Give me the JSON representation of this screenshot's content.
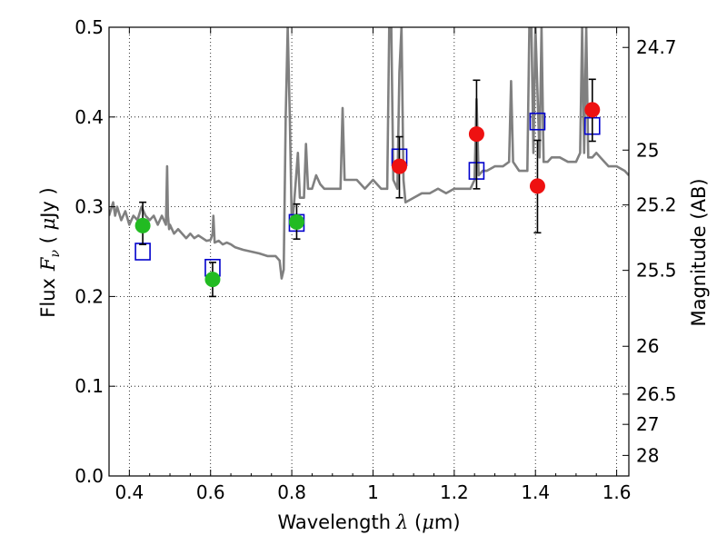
{
  "chart_data": {
    "type": "scatter",
    "xlabel": {
      "prefix": "Wavelength",
      "symbol": "λ",
      "unit_open": " (",
      "unit_mu": "μ",
      "unit_rest": "m)"
    },
    "ylabel": {
      "prefix": "Flux",
      "symbol": "F",
      "subscript": "ν",
      "unit_open": " ( ",
      "unit_mu": "μ",
      "unit_rest": "Jy )"
    },
    "y2label": "Magnitude (AB)",
    "xlim": [
      0.35,
      1.63
    ],
    "ylim": [
      0.0,
      0.5
    ],
    "grid": true,
    "xticks": [
      0.4,
      0.6,
      0.8,
      1.0,
      1.2,
      1.4,
      1.6
    ],
    "xtick_labels": [
      "0.4",
      "0.6",
      "0.8",
      "1",
      "1.2",
      "1.4",
      "1.6"
    ],
    "yticks": [
      0.0,
      0.1,
      0.2,
      0.3,
      0.4,
      0.5
    ],
    "ytick_labels": [
      "0.0",
      "0.1",
      "0.2",
      "0.3",
      "0.4",
      "0.5"
    ],
    "right_ticks": [
      {
        "label": "24.7",
        "flux": 0.4775
      },
      {
        "label": "25",
        "flux": 0.3631
      },
      {
        "label": "25.2",
        "flux": 0.302
      },
      {
        "label": "25.5",
        "flux": 0.2291
      },
      {
        "label": "26",
        "flux": 0.1445
      },
      {
        "label": "26.5",
        "flux": 0.0912
      },
      {
        "label": "27",
        "flux": 0.0575
      },
      {
        "label": "28",
        "flux": 0.0229
      }
    ],
    "series": [
      {
        "kind": "line",
        "color": "#808080",
        "x": [
          0.35,
          0.36,
          0.365,
          0.37,
          0.38,
          0.39,
          0.4,
          0.41,
          0.42,
          0.43,
          0.44,
          0.45,
          0.46,
          0.47,
          0.48,
          0.49,
          0.493,
          0.495,
          0.498,
          0.5,
          0.51,
          0.52,
          0.53,
          0.54,
          0.55,
          0.56,
          0.57,
          0.58,
          0.59,
          0.6,
          0.605,
          0.607,
          0.61,
          0.62,
          0.63,
          0.64,
          0.65,
          0.66,
          0.68,
          0.7,
          0.72,
          0.74,
          0.76,
          0.77,
          0.775,
          0.78,
          0.785,
          0.79,
          0.795,
          0.8,
          0.805,
          0.81,
          0.815,
          0.82,
          0.83,
          0.835,
          0.84,
          0.85,
          0.86,
          0.87,
          0.88,
          0.9,
          0.92,
          0.925,
          0.93,
          0.94,
          0.96,
          0.98,
          1.0,
          1.02,
          1.03,
          1.035,
          1.04,
          1.045,
          1.05,
          1.06,
          1.065,
          1.07,
          1.075,
          1.08,
          1.1,
          1.12,
          1.14,
          1.16,
          1.18,
          1.2,
          1.22,
          1.24,
          1.25,
          1.255,
          1.26,
          1.27,
          1.28,
          1.3,
          1.32,
          1.335,
          1.34,
          1.345,
          1.36,
          1.38,
          1.385,
          1.39,
          1.395,
          1.4,
          1.41,
          1.415,
          1.42,
          1.43,
          1.44,
          1.46,
          1.48,
          1.5,
          1.51,
          1.515,
          1.52,
          1.525,
          1.53,
          1.54,
          1.55,
          1.56,
          1.57,
          1.58,
          1.6,
          1.62,
          1.63
        ],
        "y": [
          0.29,
          0.305,
          0.29,
          0.3,
          0.285,
          0.295,
          0.28,
          0.29,
          0.285,
          0.3,
          0.29,
          0.285,
          0.29,
          0.28,
          0.29,
          0.28,
          0.345,
          0.29,
          0.275,
          0.28,
          0.27,
          0.275,
          0.27,
          0.265,
          0.27,
          0.265,
          0.268,
          0.265,
          0.262,
          0.263,
          0.27,
          0.29,
          0.26,
          0.262,
          0.258,
          0.26,
          0.258,
          0.255,
          0.252,
          0.25,
          0.248,
          0.245,
          0.245,
          0.24,
          0.22,
          0.23,
          0.4,
          0.5,
          0.4,
          0.28,
          0.3,
          0.33,
          0.36,
          0.31,
          0.31,
          0.37,
          0.32,
          0.32,
          0.335,
          0.325,
          0.32,
          0.32,
          0.32,
          0.41,
          0.33,
          0.33,
          0.33,
          0.32,
          0.33,
          0.32,
          0.32,
          0.32,
          0.5,
          0.5,
          0.33,
          0.32,
          0.45,
          0.5,
          0.33,
          0.305,
          0.31,
          0.315,
          0.315,
          0.32,
          0.315,
          0.32,
          0.32,
          0.32,
          0.33,
          0.42,
          0.335,
          0.34,
          0.34,
          0.345,
          0.345,
          0.35,
          0.44,
          0.35,
          0.34,
          0.34,
          0.5,
          0.5,
          0.36,
          0.5,
          0.355,
          0.5,
          0.35,
          0.35,
          0.355,
          0.355,
          0.35,
          0.35,
          0.36,
          0.5,
          0.36,
          0.5,
          0.355,
          0.355,
          0.36,
          0.355,
          0.35,
          0.345,
          0.345,
          0.34,
          0.335
        ]
      },
      {
        "kind": "squares",
        "color": "#0000cc",
        "x": [
          0.433,
          0.605,
          0.812,
          1.065,
          1.255,
          1.405,
          1.54
        ],
        "y": [
          0.25,
          0.232,
          0.282,
          0.355,
          0.34,
          0.395,
          0.39
        ]
      },
      {
        "kind": "points",
        "color": "#22bb22",
        "x": [
          0.433,
          0.605,
          0.812
        ],
        "y": [
          0.279,
          0.219,
          0.283
        ],
        "err": [
          [
            0.258,
            0.305
          ],
          [
            0.2,
            0.238
          ],
          [
            0.264,
            0.303
          ]
        ]
      },
      {
        "kind": "points",
        "color": "#ee1111",
        "x": [
          1.065,
          1.255,
          1.405,
          1.54
        ],
        "y": [
          0.345,
          0.381,
          0.323,
          0.408
        ],
        "err": [
          [
            0.31,
            0.378
          ],
          [
            0.32,
            0.441
          ],
          [
            0.271,
            0.374
          ],
          [
            0.373,
            0.442
          ]
        ]
      }
    ]
  }
}
